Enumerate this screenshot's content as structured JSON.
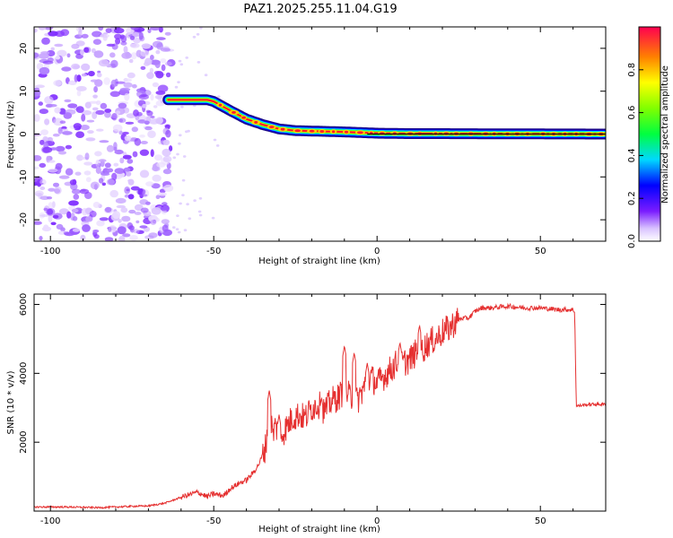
{
  "title": "PAZ1.2025.255.11.04.G19",
  "colors": {
    "line": "#e53030",
    "frame": "#000000",
    "background": "#ffffff"
  },
  "chart_data": [
    {
      "type": "heatmap",
      "xlabel": "Height of straight line (km)",
      "ylabel": "Frequency (Hz)",
      "xlim": [
        -105,
        70
      ],
      "ylim": [
        -25,
        25
      ],
      "xticks": [
        -100,
        -50,
        0,
        50
      ],
      "xtick_labels": [
        "-100",
        "-50",
        "0",
        "50"
      ],
      "yticks": [
        -20,
        -10,
        0,
        10,
        20
      ],
      "ytick_labels": [
        "-20",
        "-10",
        "0",
        "10",
        "20"
      ],
      "ridge": {
        "x": [
          -64,
          -52,
          -50,
          -45,
          -40,
          -35,
          -30,
          -25,
          -20,
          -10,
          0,
          10,
          20,
          40,
          70
        ],
        "freq": [
          8,
          8,
          7.6,
          5.5,
          3.5,
          2.2,
          1.2,
          0.8,
          0.7,
          0.5,
          0.2,
          0.1,
          0.1,
          0.05,
          0.0
        ]
      },
      "noise_region_x": [
        -105,
        -63
      ],
      "colorbar": {
        "label": "Normalized spectral amplitude",
        "range": [
          0,
          1
        ],
        "ticks": [
          0.0,
          0.2,
          0.4,
          0.6,
          0.8
        ],
        "tick_labels": [
          "0.0",
          "0.2",
          "0.4",
          "0.6",
          "0.8"
        ]
      }
    },
    {
      "type": "line",
      "xlabel": "Height of straight line (km)",
      "ylabel": "SNR (10 * v/v)",
      "xlim": [
        -105,
        70
      ],
      "ylim": [
        0,
        6300
      ],
      "xticks": [
        -100,
        -50,
        0,
        50
      ],
      "xtick_labels": [
        "-100",
        "-50",
        "0",
        "50"
      ],
      "yticks": [
        2000,
        4000,
        6000
      ],
      "ytick_labels": [
        "2000",
        "4000",
        "6000"
      ],
      "series": [
        {
          "name": "SNR",
          "x": [
            -105,
            -95,
            -85,
            -75,
            -70,
            -65,
            -60,
            -55,
            -52,
            -50,
            -47,
            -45,
            -42,
            -40,
            -38,
            -36,
            -34,
            -33,
            -32,
            -31,
            -30,
            -28,
            -26,
            -24,
            -22,
            -20,
            -18,
            -16,
            -14,
            -12,
            -10,
            -8,
            -6,
            -4,
            -2,
            0,
            2,
            4,
            6,
            8,
            10,
            12,
            14,
            16,
            18,
            20,
            22,
            24,
            26,
            28,
            30,
            32,
            35,
            40,
            45,
            50,
            55,
            60,
            60.5,
            61,
            65,
            70
          ],
          "y": [
            120,
            120,
            100,
            140,
            150,
            230,
            400,
            550,
            420,
            500,
            450,
            650,
            820,
            900,
            1100,
            1400,
            1900,
            3300,
            2200,
            2500,
            2100,
            2400,
            2700,
            2800,
            2700,
            3000,
            3100,
            2900,
            3200,
            3300,
            3500,
            3300,
            3200,
            3600,
            3900,
            3700,
            3900,
            4100,
            4300,
            4300,
            4400,
            4600,
            4700,
            4900,
            5000,
            5200,
            5300,
            5500,
            5600,
            5600,
            5800,
            5900,
            5900,
            5950,
            5900,
            5900,
            5850,
            5850,
            5800,
            3050,
            3100,
            3100
          ]
        }
      ],
      "spikes": [
        {
          "x": -33,
          "y": 3500
        },
        {
          "x": -30,
          "y": 2800
        },
        {
          "x": -17,
          "y": 3300
        },
        {
          "x": -10,
          "y": 4800
        },
        {
          "x": -7,
          "y": 4600
        },
        {
          "x": -3,
          "y": 4300
        },
        {
          "x": 7,
          "y": 4900
        },
        {
          "x": 13,
          "y": 5400
        }
      ]
    }
  ]
}
